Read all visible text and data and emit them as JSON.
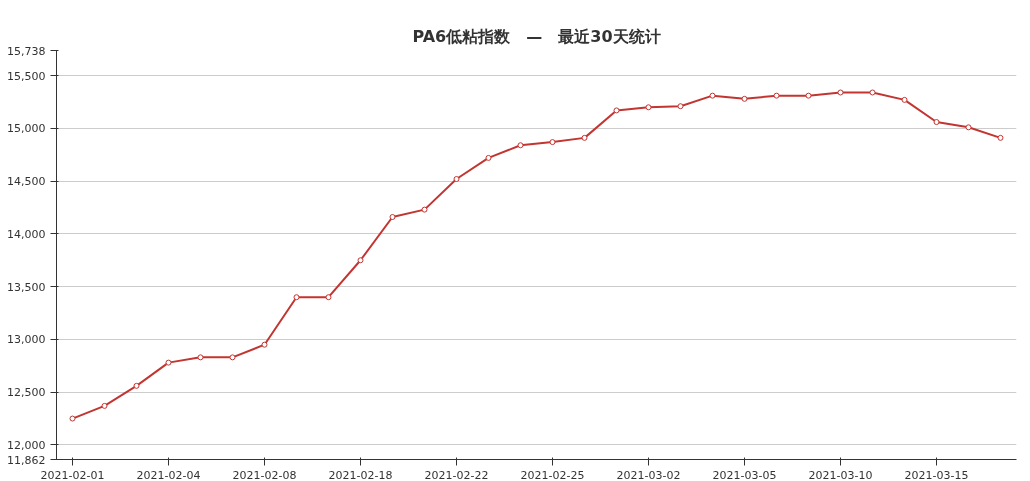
{
  "chart_data": {
    "type": "line",
    "title": "PA6低粘指数　—　最近30天统计",
    "categories": [
      "2021-02-01",
      null,
      null,
      "2021-02-04",
      null,
      null,
      "2021-02-08",
      null,
      null,
      "2021-02-18",
      null,
      null,
      "2021-02-22",
      null,
      null,
      "2021-02-25",
      null,
      null,
      "2021-03-02",
      null,
      null,
      "2021-03-05",
      null,
      null,
      "2021-03-10",
      null,
      null,
      "2021-03-15",
      null,
      null
    ],
    "series": [
      {
        "color": "#c23531",
        "values": [
          12250,
          12370,
          12560,
          12780,
          12830,
          12830,
          12950,
          13400,
          13400,
          13750,
          14160,
          14230,
          14520,
          14720,
          14840,
          14870,
          14910,
          15170,
          15200,
          15210,
          15310,
          15280,
          15310,
          15310,
          15340,
          15340,
          15270,
          15060,
          15010,
          14910
        ]
      }
    ],
    "ylim": [
      11862,
      15738
    ],
    "yticks": [
      {
        "value": 11862,
        "label": "11,862"
      },
      {
        "value": 12000,
        "label": "12,000"
      },
      {
        "value": 12500,
        "label": "12,500"
      },
      {
        "value": 13000,
        "label": "13,000"
      },
      {
        "value": 13500,
        "label": "13,500"
      },
      {
        "value": 14000,
        "label": "14,000"
      },
      {
        "value": 14500,
        "label": "14,500"
      },
      {
        "value": 15000,
        "label": "15,000"
      },
      {
        "value": 15500,
        "label": "15,500"
      },
      {
        "value": 15738,
        "label": "15,738"
      }
    ],
    "grid": "y",
    "marker": "circle",
    "line_style": "solid"
  }
}
